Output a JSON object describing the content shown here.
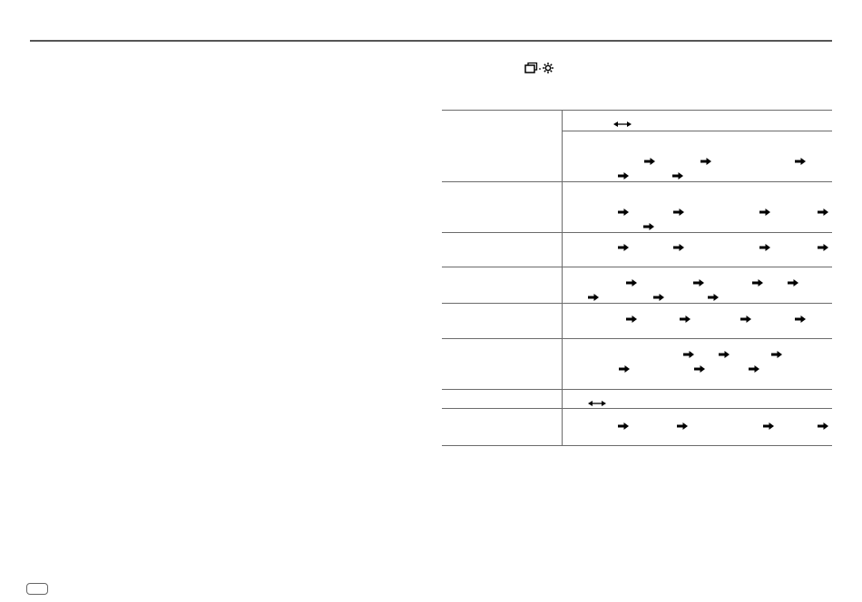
{
  "page": {
    "header_icon": "window-settings-icon",
    "page_badge_icon": "page-number-badge",
    "colors": {
      "rule": "#555555",
      "table_lines": "#6b6b6b",
      "arrows": "#000000"
    }
  },
  "table": {
    "rows": [
      {
        "name": "row-1",
        "arrow_icon": "double-arrow-icon"
      },
      {
        "name": "row-2",
        "arrow_icon": "right-arrow-icon"
      },
      {
        "name": "row-3",
        "arrow_icon": "right-arrow-icon"
      },
      {
        "name": "row-4",
        "arrow_icon": "right-arrow-icon"
      },
      {
        "name": "row-5",
        "arrow_icon": "right-arrow-icon"
      },
      {
        "name": "row-6",
        "arrow_icon": "right-arrow-icon"
      },
      {
        "name": "row-7",
        "arrow_icon": "right-arrow-icon"
      },
      {
        "name": "row-8",
        "arrow_icon": "double-arrow-icon"
      },
      {
        "name": "row-9",
        "arrow_icon": "right-arrow-icon"
      }
    ]
  }
}
